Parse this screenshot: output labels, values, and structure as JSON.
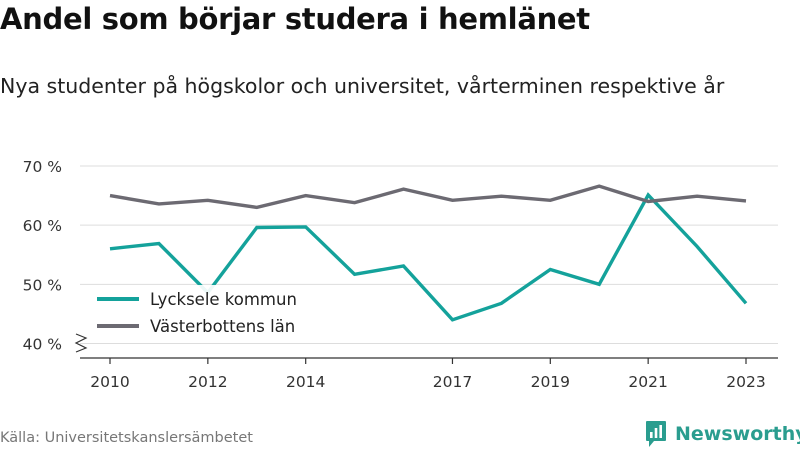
{
  "title": "Andel som börjar studera i hemlänet",
  "subtitle": "Nya studenter på högskolor och universitet, vårterminen respektive år",
  "source": "Källa: Universitetskanslersämbetet",
  "brand": "Newsworthy",
  "colors": {
    "lycksele": "#14a29b",
    "vasterbotten": "#6c6a72",
    "grid": "#dddddd",
    "axis": "#333333",
    "brand": "#2a9d8f"
  },
  "chart_data": {
    "type": "line",
    "x": [
      2010,
      2011,
      2012,
      2013,
      2014,
      2015,
      2016,
      2017,
      2018,
      2019,
      2020,
      2021,
      2022,
      2023
    ],
    "x_tick_labels": [
      "2010",
      "2012",
      "2014",
      "2017",
      "2019",
      "2021",
      "2023"
    ],
    "x_tick_values": [
      2010,
      2012,
      2014,
      2017,
      2019,
      2021,
      2023
    ],
    "y_tick_labels": [
      "40 %",
      "50 %",
      "60 %",
      "70 %"
    ],
    "y_tick_values": [
      40,
      50,
      60,
      70
    ],
    "ylim": [
      40,
      70
    ],
    "xlim": [
      2009.5,
      2023.5
    ],
    "grid": true,
    "axis_break": true,
    "legend_position": "bottom-left",
    "series": [
      {
        "name": "Lycksele kommun",
        "color": "#14a29b",
        "values": [
          56.0,
          56.9,
          48.6,
          59.6,
          59.7,
          51.7,
          53.1,
          44.0,
          46.8,
          52.5,
          50.0,
          65.1,
          56.4,
          46.8
        ]
      },
      {
        "name": "Västerbottens län",
        "color": "#6c6a72",
        "values": [
          65.0,
          63.6,
          64.2,
          63.0,
          65.0,
          63.8,
          66.1,
          64.2,
          64.9,
          64.2,
          66.6,
          64.0,
          64.9,
          64.1
        ]
      }
    ]
  }
}
